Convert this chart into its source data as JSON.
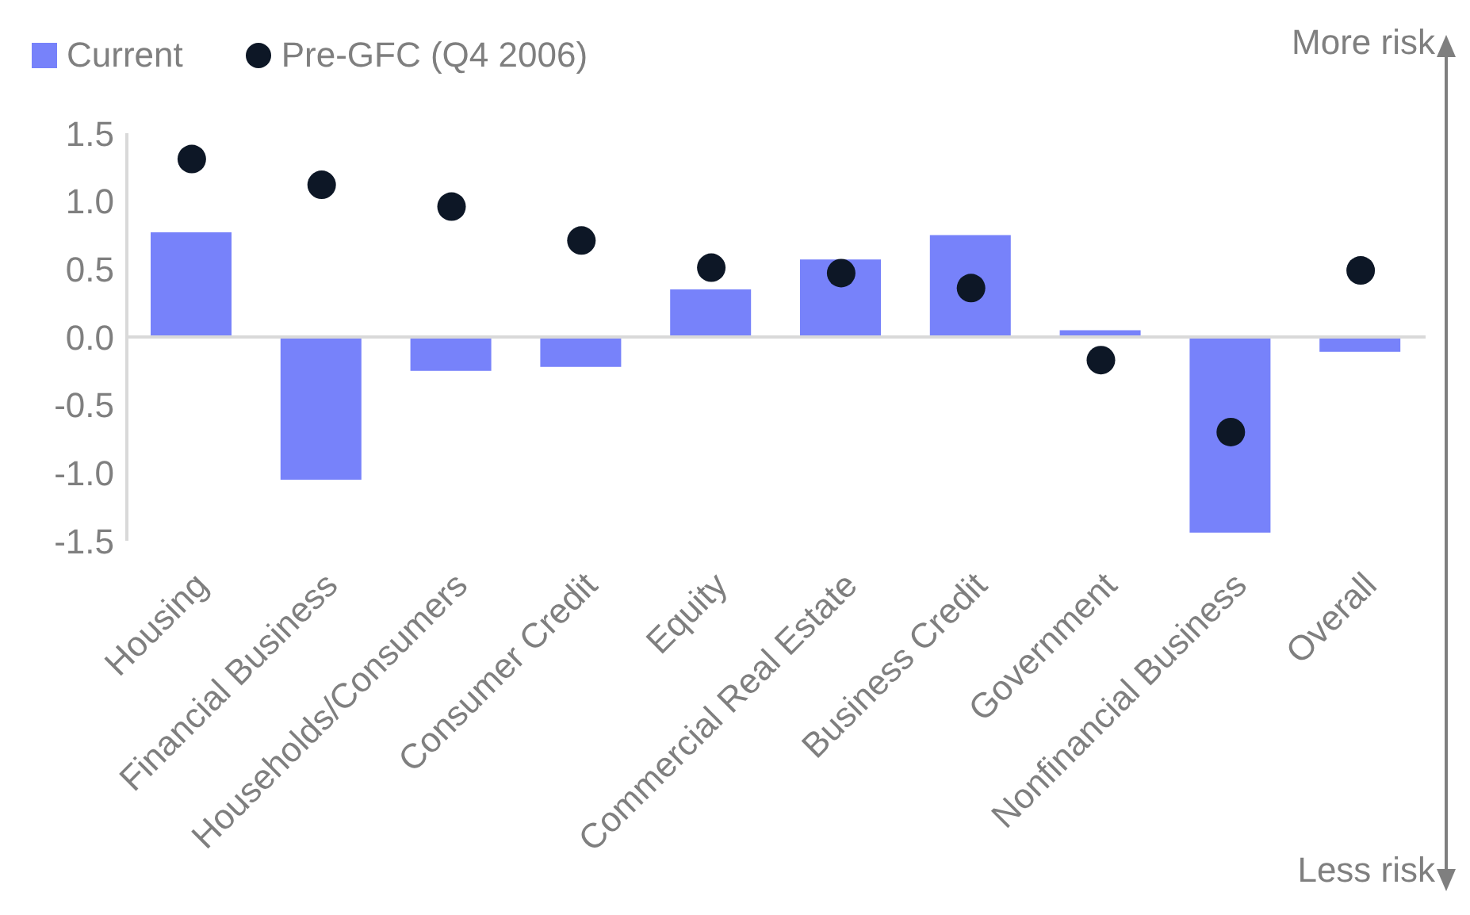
{
  "chart_data": {
    "type": "bar",
    "categories": [
      "Housing",
      "Financial Business",
      "Households/Consumers",
      "Consumer Credit",
      "Equity",
      "Commercial Real Estate",
      "Business Credit",
      "Government",
      "Nonfinancial Business",
      "Overall"
    ],
    "series": [
      {
        "name": "Current",
        "color": "#7782fa",
        "values": [
          0.77,
          -1.05,
          -0.25,
          -0.22,
          0.35,
          0.57,
          0.75,
          0.05,
          -1.44,
          -0.11
        ]
      },
      {
        "name": "Pre-GFC (Q4 2006)",
        "type": "scatter",
        "marker": "circle",
        "color": "#0d1726",
        "values": [
          1.31,
          1.12,
          0.96,
          0.71,
          0.51,
          0.47,
          0.36,
          -0.17,
          -0.7,
          0.49
        ]
      }
    ],
    "ylim": [
      -1.5,
      1.5
    ],
    "yticks": [
      {
        "value": -1.5,
        "label": "-1.5"
      },
      {
        "value": -1.0,
        "label": "-1.0"
      },
      {
        "value": -0.5,
        "label": "-0.5"
      },
      {
        "value": 0,
        "label": "0.0"
      },
      {
        "value": 0.5,
        "label": "0.5"
      },
      {
        "value": 1.0,
        "label": "1.0"
      },
      {
        "value": 1.5,
        "label": "1.5"
      }
    ],
    "grid": false,
    "legend": "top left",
    "ref_lines": [
      {
        "axis": "y",
        "value": 0,
        "color": "#d9d9d9"
      }
    ],
    "annotations": [
      "More risk",
      "Less risk"
    ]
  }
}
